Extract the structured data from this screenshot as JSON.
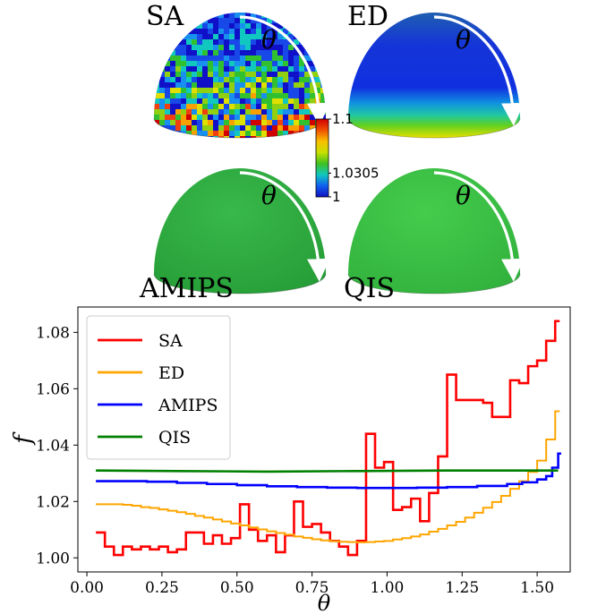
{
  "figure": {
    "colors": {
      "axes": "#000000",
      "background": "#ffffff",
      "arrow": "#ffffff"
    },
    "hemispheres": [
      {
        "label": "SA",
        "theta_label": "θ",
        "coloring": "noisy",
        "base_color": "#1e3cd8"
      },
      {
        "label": "ED",
        "theta_label": "θ",
        "coloring": "gradient",
        "base_color": "#1230d8"
      },
      {
        "label": "AMIPS",
        "theta_label": "θ",
        "coloring": "uniform",
        "base_color": "#2bb040"
      },
      {
        "label": "QIS",
        "theta_label": "θ",
        "coloring": "uniform",
        "base_color": "#30c040"
      }
    ],
    "colorbar": {
      "ticks": [
        "1.1",
        "1.0305",
        "1"
      ],
      "tick_values": [
        1.1,
        1.0305,
        1.0
      ],
      "colormap": [
        "#1010c0",
        "#1060f0",
        "#10c8c0",
        "#40c020",
        "#c8e000",
        "#f8c000",
        "#f05000",
        "#d00000"
      ]
    }
  },
  "chart_data": {
    "type": "line",
    "xlabel": "θ",
    "ylabel": "f",
    "xlim": [
      -0.03,
      1.61
    ],
    "ylim": [
      0.995,
      1.089
    ],
    "xticks": [
      0.0,
      0.25,
      0.5,
      0.75,
      1.0,
      1.25,
      1.5
    ],
    "xtick_labels": [
      "0.00",
      "0.25",
      "0.50",
      "0.75",
      "1.00",
      "1.25",
      "1.50"
    ],
    "yticks": [
      1.0,
      1.02,
      1.04,
      1.06,
      1.08
    ],
    "ytick_labels": [
      "1.00",
      "1.02",
      "1.04",
      "1.06",
      "1.08"
    ],
    "grid": false,
    "legend": "top-left",
    "series": [
      {
        "name": "SA",
        "color": "#ff0000",
        "step": true,
        "x": [
          0.03,
          0.06,
          0.09,
          0.12,
          0.15,
          0.18,
          0.21,
          0.24,
          0.27,
          0.3,
          0.33,
          0.36,
          0.39,
          0.42,
          0.45,
          0.48,
          0.51,
          0.54,
          0.57,
          0.6,
          0.63,
          0.66,
          0.69,
          0.72,
          0.75,
          0.78,
          0.81,
          0.84,
          0.87,
          0.9,
          0.93,
          0.96,
          0.99,
          1.02,
          1.05,
          1.08,
          1.11,
          1.14,
          1.17,
          1.2,
          1.23,
          1.26,
          1.29,
          1.32,
          1.35,
          1.38,
          1.41,
          1.44,
          1.47,
          1.5,
          1.53,
          1.56
        ],
        "y": [
          1.009,
          1.004,
          1.001,
          1.004,
          1.003,
          1.004,
          1.003,
          1.004,
          1.002,
          1.003,
          1.009,
          1.009,
          1.005,
          1.008,
          1.005,
          1.007,
          1.019,
          1.01,
          1.006,
          1.008,
          1.002,
          1.008,
          1.02,
          1.011,
          1.012,
          1.009,
          1.006,
          1.004,
          1.001,
          1.006,
          1.044,
          1.032,
          1.034,
          1.017,
          1.018,
          1.021,
          1.013,
          1.023,
          1.036,
          1.065,
          1.056,
          1.056,
          1.056,
          1.055,
          1.05,
          1.05,
          1.063,
          1.062,
          1.068,
          1.07,
          1.077,
          1.084
        ]
      },
      {
        "name": "ED",
        "color": "#ffa500",
        "step": true,
        "x": [
          0.03,
          0.06,
          0.09,
          0.12,
          0.15,
          0.18,
          0.21,
          0.24,
          0.27,
          0.3,
          0.33,
          0.36,
          0.39,
          0.42,
          0.45,
          0.48,
          0.51,
          0.54,
          0.57,
          0.6,
          0.63,
          0.66,
          0.69,
          0.72,
          0.75,
          0.78,
          0.81,
          0.84,
          0.87,
          0.9,
          0.93,
          0.96,
          0.99,
          1.02,
          1.05,
          1.08,
          1.11,
          1.14,
          1.17,
          1.2,
          1.23,
          1.26,
          1.29,
          1.32,
          1.35,
          1.38,
          1.41,
          1.44,
          1.47,
          1.5,
          1.53,
          1.56
        ],
        "y": [
          1.019,
          1.019,
          1.019,
          1.0188,
          1.0185,
          1.018,
          1.0177,
          1.0172,
          1.0167,
          1.0162,
          1.0156,
          1.0149,
          1.0143,
          1.0136,
          1.0129,
          1.0122,
          1.0115,
          1.0108,
          1.0101,
          1.0094,
          1.0088,
          1.0082,
          1.0076,
          1.0071,
          1.0066,
          1.0062,
          1.0059,
          1.0057,
          1.0056,
          1.0055,
          1.0056,
          1.0058,
          1.006,
          1.0065,
          1.007,
          1.0076,
          1.0083,
          1.0093,
          1.0103,
          1.0115,
          1.0128,
          1.0143,
          1.016,
          1.0178,
          1.0198,
          1.022,
          1.0245,
          1.0272,
          1.0305,
          1.0345,
          1.042,
          1.052
        ]
      },
      {
        "name": "AMIPS",
        "color": "#0000ff",
        "step": true,
        "x": [
          0.03,
          0.1,
          0.2,
          0.3,
          0.4,
          0.5,
          0.6,
          0.7,
          0.8,
          0.9,
          1.0,
          1.1,
          1.2,
          1.3,
          1.4,
          1.45,
          1.5,
          1.53,
          1.55,
          1.57
        ],
        "y": [
          1.0272,
          1.0272,
          1.027,
          1.0266,
          1.0262,
          1.0258,
          1.0254,
          1.0251,
          1.0249,
          1.0248,
          1.0248,
          1.0249,
          1.0251,
          1.0255,
          1.0262,
          1.0268,
          1.0278,
          1.029,
          1.032,
          1.037
        ]
      },
      {
        "name": "QIS",
        "color": "#008000",
        "step": false,
        "x": [
          0.03,
          0.3,
          0.6,
          0.9,
          1.2,
          1.57
        ],
        "y": [
          1.031,
          1.0308,
          1.0306,
          1.0308,
          1.031,
          1.031
        ]
      }
    ]
  }
}
